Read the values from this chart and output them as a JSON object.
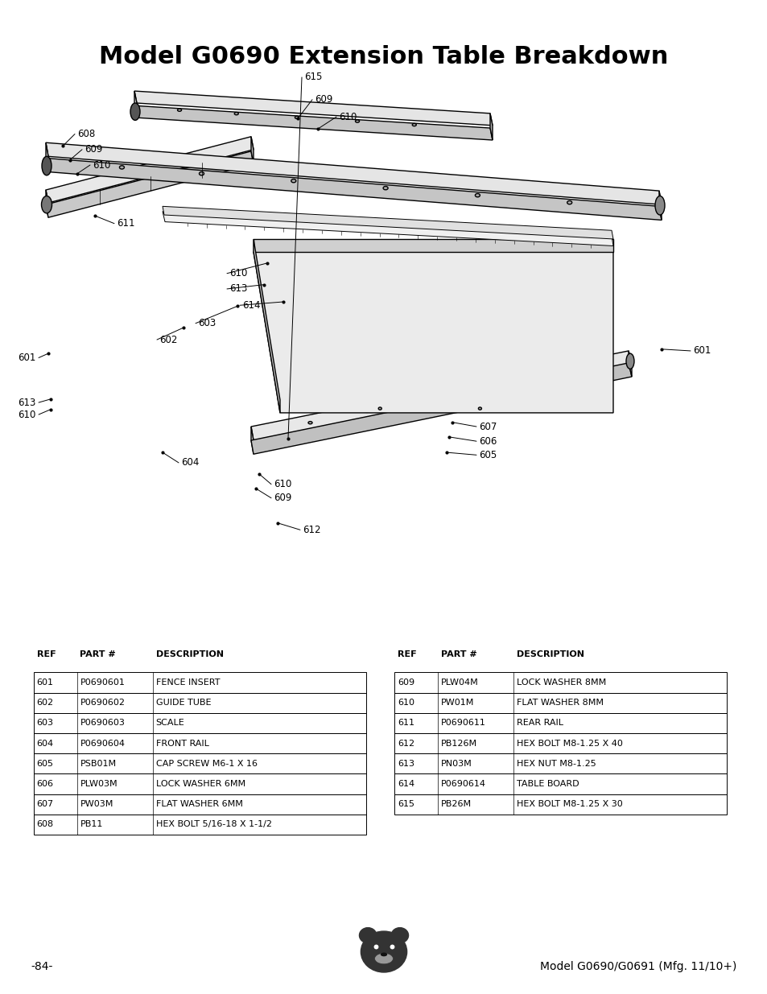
{
  "title": "Model G0690 Extension Table Breakdown",
  "title_fontsize": 22,
  "title_fontweight": "bold",
  "bg_color": "#ffffff",
  "text_color": "#000000",
  "table_left": {
    "headers": [
      "REF",
      "PART #",
      "DESCRIPTION"
    ],
    "rows": [
      [
        "601",
        "P0690601",
        "FENCE INSERT"
      ],
      [
        "602",
        "P0690602",
        "GUIDE TUBE"
      ],
      [
        "603",
        "P0690603",
        "SCALE"
      ],
      [
        "604",
        "P0690604",
        "FRONT RAIL"
      ],
      [
        "605",
        "PSB01M",
        "CAP SCREW M6-1 X 16"
      ],
      [
        "606",
        "PLW03M",
        "LOCK WASHER 6MM"
      ],
      [
        "607",
        "PW03M",
        "FLAT WASHER 6MM"
      ],
      [
        "608",
        "PB11",
        "HEX BOLT 5/16-18 X 1-1/2"
      ]
    ]
  },
  "table_right": {
    "headers": [
      "REF",
      "PART #",
      "DESCRIPTION"
    ],
    "rows": [
      [
        "609",
        "PLW04M",
        "LOCK WASHER 8MM"
      ],
      [
        "610",
        "PW01M",
        "FLAT WASHER 8MM"
      ],
      [
        "611",
        "P0690611",
        "REAR RAIL"
      ],
      [
        "612",
        "PB126M",
        "HEX BOLT M8-1.25 X 40"
      ],
      [
        "613",
        "PN03M",
        "HEX NUT M8-1.25"
      ],
      [
        "614",
        "P0690614",
        "TABLE BOARD"
      ],
      [
        "615",
        "PB26M",
        "HEX BOLT M8-1.25 X 30"
      ]
    ]
  },
  "footer_left": "-84-",
  "footer_right": "Model G0690/G0691 (Mfg. 11/10+)"
}
